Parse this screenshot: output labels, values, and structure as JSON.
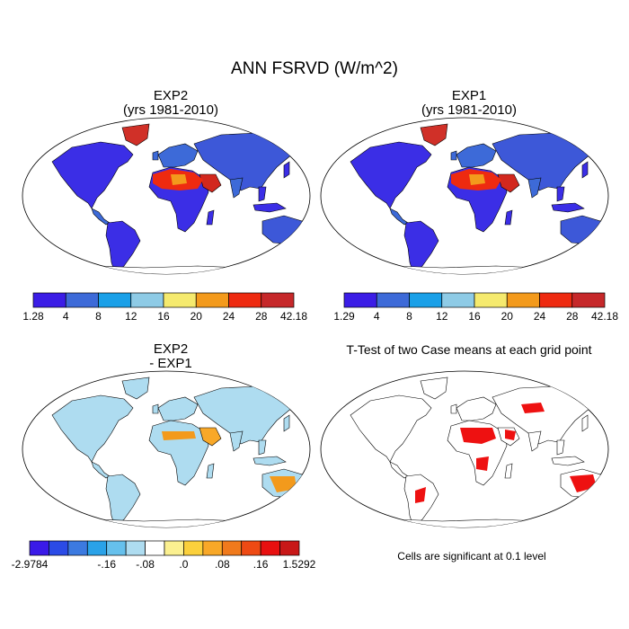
{
  "title": "ANN FSRVD (W/m^2)",
  "panels": {
    "exp2": {
      "line1": "EXP2",
      "line2": "(yrs 1981-2010)"
    },
    "exp1": {
      "line1": "EXP1",
      "line2": "(yrs 1981-2010)"
    },
    "diff": {
      "line1": "EXP2",
      "line2": "- EXP1"
    },
    "ttest": {
      "line1": "T-Test of two Case means at each grid point"
    }
  },
  "colorbars": {
    "exp2": {
      "colors": [
        "#3b1de6",
        "#3d6ad8",
        "#1aa0e8",
        "#8ecbe6",
        "#f5ea6e",
        "#f39a1c",
        "#ee2a10",
        "#c6282a"
      ],
      "labels": [
        "1.28",
        "4",
        "8",
        "12",
        "16",
        "20",
        "24",
        "28",
        "42.18"
      ]
    },
    "exp1": {
      "colors": [
        "#3b1de6",
        "#3d6ad8",
        "#1aa0e8",
        "#8ecbe6",
        "#f5ea6e",
        "#f39a1c",
        "#ee2a10",
        "#c6282a"
      ],
      "labels": [
        "1.29",
        "4",
        "8",
        "12",
        "16",
        "20",
        "24",
        "28",
        "42.18"
      ]
    },
    "diff": {
      "colors": [
        "#3a1ae8",
        "#2b4be6",
        "#3c7ae0",
        "#2aa2e8",
        "#66c0ec",
        "#aedcf0",
        "#ffffff",
        "#fbf090",
        "#fbd03c",
        "#f8a828",
        "#f07a1c",
        "#ee4a14",
        "#e81010",
        "#c81818"
      ],
      "labels": [
        "-2.9784",
        "-.16",
        "-.08",
        ".0",
        ".08",
        ".16",
        "1.5292"
      ],
      "label_boundaries": [
        0,
        4,
        6,
        8,
        10,
        12,
        14
      ]
    }
  },
  "significance_note": "Cells are significant at 0.1 level",
  "significance_color": "#ee1111"
}
